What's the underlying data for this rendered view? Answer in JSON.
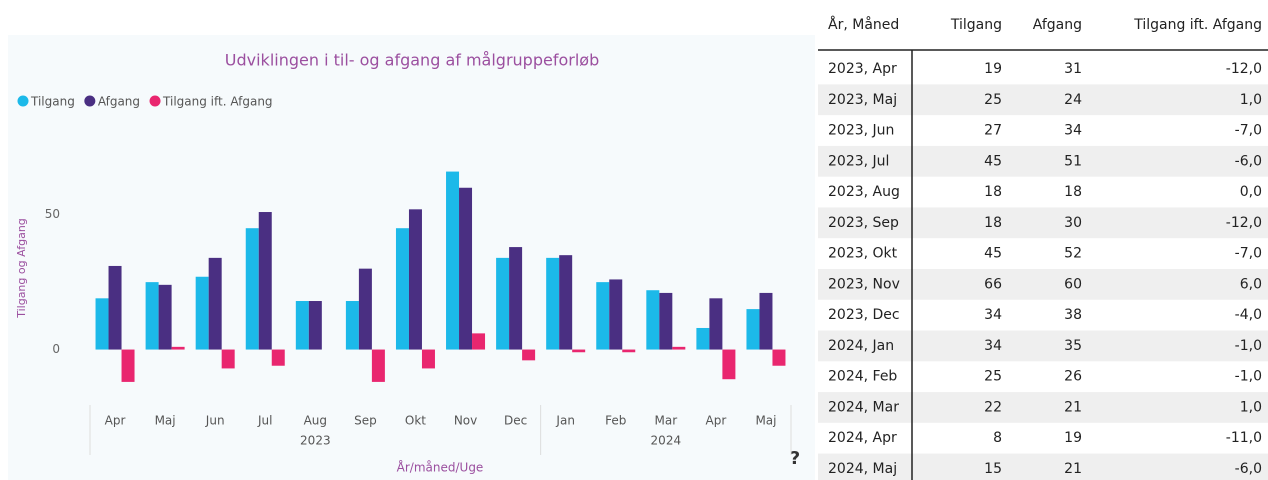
{
  "chart_data": {
    "type": "bar",
    "title": "Udviklingen i til- og afgang af målgruppeforløb",
    "categories": [
      "Apr",
      "Maj",
      "Jun",
      "Jul",
      "Aug",
      "Sep",
      "Okt",
      "Nov",
      "Dec",
      "Jan",
      "Feb",
      "Mar",
      "Apr",
      "Maj"
    ],
    "category_groups": [
      {
        "label": "2023",
        "size": 9
      },
      {
        "label": "2024",
        "size": 5
      }
    ],
    "series": [
      {
        "name": "Tilgang",
        "color": "#1cb9e9",
        "values": [
          19,
          25,
          27,
          45,
          18,
          18,
          45,
          66,
          34,
          34,
          25,
          22,
          8,
          15
        ]
      },
      {
        "name": "Afgang",
        "color": "#4a2f82",
        "values": [
          31,
          24,
          34,
          51,
          18,
          30,
          52,
          60,
          38,
          35,
          26,
          21,
          19,
          21
        ]
      },
      {
        "name": "Tilgang ift. Afgang",
        "color": "#e9266f",
        "values": [
          -12,
          1,
          -7,
          -6,
          0,
          -12,
          -7,
          6,
          -4,
          -1,
          -1,
          1,
          -11,
          -6
        ]
      }
    ],
    "xlabel": "År/måned/Uge",
    "ylabel": "Tilgang og Afgang",
    "ylim": [
      -15,
      74
    ],
    "yticks": [
      0,
      50
    ],
    "grid": false,
    "legend": "top-left"
  },
  "help_icon": "?",
  "table": {
    "columns": [
      "År, Måned",
      "Tilgang",
      "Afgang",
      "Tilgang ift. Afgang"
    ],
    "rows": [
      [
        "2023, Apr",
        "19",
        "31",
        "-12,0"
      ],
      [
        "2023, Maj",
        "25",
        "24",
        "1,0"
      ],
      [
        "2023, Jun",
        "27",
        "34",
        "-7,0"
      ],
      [
        "2023, Jul",
        "45",
        "51",
        "-6,0"
      ],
      [
        "2023, Aug",
        "18",
        "18",
        "0,0"
      ],
      [
        "2023, Sep",
        "18",
        "30",
        "-12,0"
      ],
      [
        "2023, Okt",
        "45",
        "52",
        "-7,0"
      ],
      [
        "2023, Nov",
        "66",
        "60",
        "6,0"
      ],
      [
        "2023, Dec",
        "34",
        "38",
        "-4,0"
      ],
      [
        "2024, Jan",
        "34",
        "35",
        "-1,0"
      ],
      [
        "2024, Feb",
        "25",
        "26",
        "-1,0"
      ],
      [
        "2024, Mar",
        "22",
        "21",
        "1,0"
      ],
      [
        "2024, Apr",
        "8",
        "19",
        "-11,0"
      ],
      [
        "2024, Maj",
        "15",
        "21",
        "-6,0"
      ]
    ]
  }
}
